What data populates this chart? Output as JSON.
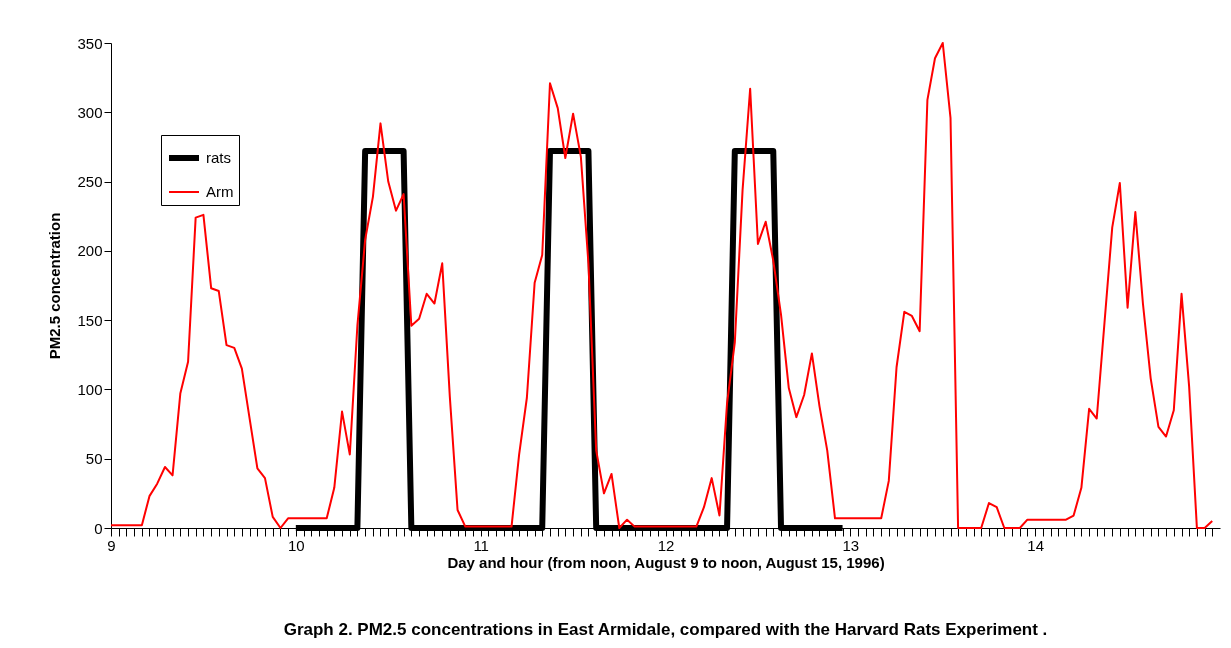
{
  "chart_data": {
    "type": "line",
    "title": "Graph 2.  PM2.5 concentrations in East Armidale, compared with the Harvard Rats Experiment  .",
    "xlabel": "Day and hour (from noon, August 9 to noon, August 15, 1996)",
    "ylabel": "PM2.5 concentration",
    "legend": "top left",
    "xlim": [
      9,
      15
    ],
    "ylim": [
      0,
      350
    ],
    "yticks": [
      0,
      50,
      100,
      150,
      200,
      250,
      300,
      350
    ],
    "xticks": [
      9,
      {
        "value": 9.042,
        "label": null
      },
      {
        "value": 9.083,
        "label": null
      },
      {
        "value": 9.125,
        "label": null
      },
      {
        "value": 9.167,
        "label": null
      },
      {
        "value": 9.208,
        "label": null
      },
      {
        "value": 9.25,
        "label": null
      },
      {
        "value": 9.292,
        "label": null
      },
      {
        "value": 9.333,
        "label": null
      },
      {
        "value": 9.375,
        "label": null
      },
      {
        "value": 9.417,
        "label": null
      },
      {
        "value": 9.458,
        "label": null
      },
      {
        "value": 9.5,
        "label": null
      },
      {
        "value": 9.542,
        "label": null
      },
      {
        "value": 9.583,
        "label": null
      },
      {
        "value": 9.625,
        "label": null
      },
      {
        "value": 9.667,
        "label": null
      },
      {
        "value": 9.708,
        "label": null
      },
      {
        "value": 9.75,
        "label": null
      },
      {
        "value": 9.792,
        "label": null
      },
      {
        "value": 9.833,
        "label": null
      },
      {
        "value": 9.875,
        "label": null
      },
      {
        "value": 9.917,
        "label": null
      },
      {
        "value": 9.958,
        "label": null
      },
      10,
      {
        "value": 10.042,
        "label": null
      },
      {
        "value": 10.083,
        "label": null
      },
      {
        "value": 10.125,
        "label": null
      },
      {
        "value": 10.167,
        "label": null
      },
      {
        "value": 10.208,
        "label": null
      },
      {
        "value": 10.25,
        "label": null
      },
      {
        "value": 10.292,
        "label": null
      },
      {
        "value": 10.333,
        "label": null
      },
      {
        "value": 10.375,
        "label": null
      },
      {
        "value": 10.417,
        "label": null
      },
      {
        "value": 10.458,
        "label": null
      },
      {
        "value": 10.5,
        "label": null
      },
      {
        "value": 10.542,
        "label": null
      },
      {
        "value": 10.583,
        "label": null
      },
      {
        "value": 10.625,
        "label": null
      },
      {
        "value": 10.667,
        "label": null
      },
      {
        "value": 10.708,
        "label": null
      },
      {
        "value": 10.75,
        "label": null
      },
      {
        "value": 10.792,
        "label": null
      },
      {
        "value": 10.833,
        "label": null
      },
      {
        "value": 10.875,
        "label": null
      },
      {
        "value": 10.917,
        "label": null
      },
      {
        "value": 10.958,
        "label": null
      },
      11,
      {
        "value": 11.042,
        "label": null
      },
      {
        "value": 11.083,
        "label": null
      },
      {
        "value": 11.125,
        "label": null
      },
      {
        "value": 11.167,
        "label": null
      },
      {
        "value": 11.208,
        "label": null
      },
      {
        "value": 11.25,
        "label": null
      },
      {
        "value": 11.292,
        "label": null
      },
      {
        "value": 11.333,
        "label": null
      },
      {
        "value": 11.375,
        "label": null
      },
      {
        "value": 11.417,
        "label": null
      },
      {
        "value": 11.458,
        "label": null
      },
      {
        "value": 11.5,
        "label": null
      },
      {
        "value": 11.542,
        "label": null
      },
      {
        "value": 11.583,
        "label": null
      },
      {
        "value": 11.625,
        "label": null
      },
      {
        "value": 11.667,
        "label": null
      },
      {
        "value": 11.708,
        "label": null
      },
      {
        "value": 11.75,
        "label": null
      },
      {
        "value": 11.792,
        "label": null
      },
      {
        "value": 11.833,
        "label": null
      },
      {
        "value": 11.875,
        "label": null
      },
      {
        "value": 11.917,
        "label": null
      },
      {
        "value": 11.958,
        "label": null
      },
      12,
      {
        "value": 12.042,
        "label": null
      },
      {
        "value": 12.083,
        "label": null
      },
      {
        "value": 12.125,
        "label": null
      },
      {
        "value": 12.167,
        "label": null
      },
      {
        "value": 12.208,
        "label": null
      },
      {
        "value": 12.25,
        "label": null
      },
      {
        "value": 12.292,
        "label": null
      },
      {
        "value": 12.333,
        "label": null
      },
      {
        "value": 12.375,
        "label": null
      },
      {
        "value": 12.417,
        "label": null
      },
      {
        "value": 12.458,
        "label": null
      },
      {
        "value": 12.5,
        "label": null
      },
      {
        "value": 12.542,
        "label": null
      },
      {
        "value": 12.583,
        "label": null
      },
      {
        "value": 12.625,
        "label": null
      },
      {
        "value": 12.667,
        "label": null
      },
      {
        "value": 12.708,
        "label": null
      },
      {
        "value": 12.75,
        "label": null
      },
      {
        "value": 12.792,
        "label": null
      },
      {
        "value": 12.833,
        "label": null
      },
      {
        "value": 12.875,
        "label": null
      },
      {
        "value": 12.917,
        "label": null
      },
      {
        "value": 12.958,
        "label": null
      },
      13,
      {
        "value": 13.042,
        "label": null
      },
      {
        "value": 13.083,
        "label": null
      },
      {
        "value": 13.125,
        "label": null
      },
      {
        "value": 13.167,
        "label": null
      },
      {
        "value": 13.208,
        "label": null
      },
      {
        "value": 13.25,
        "label": null
      },
      {
        "value": 13.292,
        "label": null
      },
      {
        "value": 13.333,
        "label": null
      },
      {
        "value": 13.375,
        "label": null
      },
      {
        "value": 13.417,
        "label": null
      },
      {
        "value": 13.458,
        "label": null
      },
      {
        "value": 13.5,
        "label": null
      },
      {
        "value": 13.542,
        "label": null
      },
      {
        "value": 13.583,
        "label": null
      },
      {
        "value": 13.625,
        "label": null
      },
      {
        "value": 13.667,
        "label": null
      },
      {
        "value": 13.708,
        "label": null
      },
      {
        "value": 13.75,
        "label": null
      },
      {
        "value": 13.792,
        "label": null
      },
      {
        "value": 13.833,
        "label": null
      },
      {
        "value": 13.875,
        "label": null
      },
      {
        "value": 13.917,
        "label": null
      },
      {
        "value": 13.958,
        "label": null
      },
      14,
      {
        "value": 14.042,
        "label": null
      },
      {
        "value": 14.083,
        "label": null
      },
      {
        "value": 14.125,
        "label": null
      },
      {
        "value": 14.167,
        "label": null
      },
      {
        "value": 14.208,
        "label": null
      },
      {
        "value": 14.25,
        "label": null
      },
      {
        "value": 14.292,
        "label": null
      },
      {
        "value": 14.333,
        "label": null
      },
      {
        "value": 14.375,
        "label": null
      },
      {
        "value": 14.417,
        "label": null
      },
      {
        "value": 14.458,
        "label": null
      },
      {
        "value": 14.5,
        "label": null
      },
      {
        "value": 14.542,
        "label": null
      },
      {
        "value": 14.583,
        "label": null
      },
      {
        "value": 14.625,
        "label": null
      },
      {
        "value": 14.667,
        "label": null
      },
      {
        "value": 14.708,
        "label": null
      },
      {
        "value": 14.75,
        "label": null
      },
      {
        "value": 14.792,
        "label": null
      },
      {
        "value": 14.833,
        "label": null
      },
      {
        "value": 14.875,
        "label": null
      },
      {
        "value": 14.917,
        "label": null
      },
      {
        "value": 14.958,
        "label": null
      }
    ],
    "x": [
      9,
      9.042,
      9.083,
      9.125,
      9.167,
      9.208,
      9.25,
      9.292,
      9.333,
      9.375,
      9.417,
      9.458,
      9.5,
      9.542,
      9.583,
      9.625,
      9.667,
      9.708,
      9.75,
      9.792,
      9.833,
      9.875,
      9.917,
      9.958,
      10,
      10.042,
      10.083,
      10.125,
      10.167,
      10.208,
      10.25,
      10.292,
      10.333,
      10.375,
      10.417,
      10.458,
      10.5,
      10.542,
      10.583,
      10.625,
      10.667,
      10.708,
      10.75,
      10.792,
      10.833,
      10.875,
      10.917,
      10.958,
      11,
      11.042,
      11.083,
      11.125,
      11.167,
      11.208,
      11.25,
      11.292,
      11.333,
      11.375,
      11.417,
      11.458,
      11.5,
      11.542,
      11.583,
      11.625,
      11.667,
      11.708,
      11.75,
      11.792,
      11.833,
      11.875,
      11.917,
      11.958,
      12,
      12.042,
      12.083,
      12.125,
      12.167,
      12.208,
      12.25,
      12.292,
      12.333,
      12.375,
      12.417,
      12.458,
      12.5,
      12.542,
      12.583,
      12.625,
      12.667,
      12.708,
      12.75,
      12.792,
      12.833,
      12.875,
      12.917,
      12.958,
      13,
      13.042,
      13.083,
      13.125,
      13.167,
      13.208,
      13.25,
      13.292,
      13.333,
      13.375,
      13.417,
      13.458,
      13.5,
      13.542,
      13.583,
      13.625,
      13.667,
      13.708,
      13.75,
      13.792,
      13.833,
      13.875,
      13.917,
      13.958,
      14,
      14.042,
      14.083,
      14.125,
      14.167,
      14.208,
      14.25,
      14.292,
      14.333,
      14.375,
      14.417,
      14.458,
      14.5,
      14.542,
      14.583,
      14.625,
      14.667,
      14.708,
      14.75,
      14.792,
      14.833,
      14.875,
      14.917,
      14.958
    ],
    "series": [
      {
        "name": "rats",
        "color": "#000000",
        "x": [
          10,
          10.333,
          10.375,
          10.583,
          10.625,
          11.333,
          11.375,
          11.583,
          11.625,
          12.333,
          12.375,
          12.583,
          12.625,
          12.958
        ],
        "values": [
          0,
          0,
          272,
          272,
          0,
          0,
          272,
          272,
          0,
          0,
          272,
          272,
          0,
          0
        ]
      },
      {
        "name": "Arm",
        "color": "#ff0000",
        "values": [
          2,
          2,
          2,
          2,
          2,
          23,
          32,
          44,
          38,
          97,
          120,
          224,
          226,
          173,
          171,
          132,
          130,
          115,
          79,
          43,
          36,
          8,
          0,
          7,
          7,
          7,
          7,
          7,
          7,
          29,
          84,
          53,
          146,
          208,
          239,
          292,
          250,
          229,
          241,
          146,
          151,
          169,
          162,
          191,
          95,
          13,
          1,
          1,
          1,
          1,
          1,
          1,
          1,
          53,
          94,
          177,
          197,
          321,
          303,
          267,
          299,
          268,
          191,
          56,
          25,
          39,
          0,
          6,
          1,
          1,
          1,
          1,
          1,
          1,
          1,
          1,
          1,
          15,
          36,
          9,
          90,
          134,
          244,
          317,
          205,
          221,
          193,
          154,
          101,
          80,
          96,
          126,
          88,
          56,
          7,
          7,
          7,
          7,
          7,
          7,
          7,
          34,
          116,
          156,
          153,
          142,
          309,
          339,
          350,
          296,
          0,
          0,
          0,
          0,
          18,
          15,
          0,
          0,
          0,
          6,
          6,
          6,
          6,
          6,
          6,
          9,
          29,
          86,
          79,
          148,
          217,
          249,
          159,
          228,
          162,
          108,
          73,
          66,
          85,
          169,
          102,
          0,
          0,
          5
        ]
      }
    ]
  }
}
